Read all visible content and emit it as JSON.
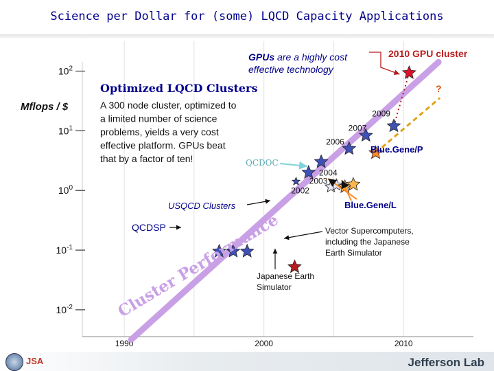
{
  "page": {
    "title": "Science per Dollar for (some) LQCD Capacity Applications",
    "footer_logo": "Jefferson Lab",
    "footer_left_logo": "JSA"
  },
  "chart_data": {
    "type": "scatter",
    "ylabel": "Mflops / $",
    "yscale": "log",
    "xlim": [
      1987,
      2015
    ],
    "ylim": [
      -2.45,
      2.5
    ],
    "x_ticks": [
      {
        "x": 1990,
        "label": "1990"
      },
      {
        "x": 2000,
        "label": "2000"
      },
      {
        "x": 2010,
        "label": "2010"
      }
    ],
    "y_ticks": [
      {
        "y": 2,
        "base": "10",
        "exp": "2"
      },
      {
        "y": 1,
        "base": "10",
        "exp": "1"
      },
      {
        "y": 0,
        "base": "10",
        "exp": "0"
      },
      {
        "y": -1,
        "base": "10",
        "exp": "-1"
      },
      {
        "y": -2,
        "base": "10",
        "exp": "-2"
      }
    ],
    "series": [
      {
        "name": "QCDSP",
        "marker": "star",
        "color": "#3f51b5",
        "x": [
          1996.8,
          1997.8,
          1998.8
        ],
        "y": [
          -1.02,
          -1.02,
          -1.02
        ]
      },
      {
        "name": "USQCD Clusters",
        "marker": "star",
        "color": "#3f51b5",
        "x": [
          2002.3,
          2003.2,
          2004.1,
          2006.1,
          2007.3,
          2009.3
        ],
        "y": [
          0.15,
          0.3,
          0.48,
          0.7,
          0.92,
          1.08
        ]
      },
      {
        "name": "QCDOC",
        "marker": "star",
        "color": "#e8eaf6",
        "x": [
          2004.8,
          2005.2
        ],
        "y": [
          0.06,
          0.09
        ]
      },
      {
        "name": "Blue.Gene/L",
        "marker": "star",
        "color": "#ffb74d",
        "x": [
          2005.8,
          2006.4
        ],
        "y": [
          0.06,
          0.1
        ]
      },
      {
        "name": "Blue.Gene/P",
        "marker": "star",
        "color": "#ff8c26",
        "x": [
          2008.0
        ],
        "y": [
          0.63
        ]
      },
      {
        "name": "Japanese Earth Simulator",
        "marker": "star",
        "color": "#b71c1c",
        "x": [
          2002.2
        ],
        "y": [
          -1.28
        ]
      },
      {
        "name": "2010 GPU cluster",
        "marker": "star",
        "color": "#e0102a",
        "x": [
          2010.4
        ],
        "y": [
          1.97
        ]
      }
    ],
    "trend": {
      "label": "Cluster Performance",
      "x": [
        1990.5,
        2012.5
      ],
      "y": [
        -2.5,
        2.15
      ]
    },
    "projection": {
      "x": [
        2008.0,
        2012.6
      ],
      "y": [
        0.63,
        1.55
      ]
    },
    "question_mark": "?",
    "point_labels": [
      {
        "text": "2002",
        "x": 2002.6,
        "y": -0.05
      },
      {
        "text": "2003",
        "x": 2003.9,
        "y": 0.11
      },
      {
        "text": "2004",
        "x": 2004.6,
        "y": 0.25
      },
      {
        "text": "2006",
        "x": 2005.1,
        "y": 0.77
      },
      {
        "text": "2007",
        "x": 2006.7,
        "y": 1.0
      },
      {
        "text": "2009",
        "x": 2008.4,
        "y": 1.24
      }
    ],
    "annotations": {
      "gpu_headline_em": "GPUs",
      "gpu_headline_rest": " are a highly cost",
      "gpu_headline_2": "effective technology",
      "gpu_cluster_label": "2010 GPU cluster",
      "optimized_title": "Optimized LQCD Clusters",
      "optimized_body": [
        "A 300 node cluster, optimized to",
        "a limited number of science",
        "problems, yields a very cost",
        "effective platform. GPUs beat",
        "that by a factor of ten!"
      ],
      "qcdoc": "QCDOC",
      "bluegene_p": "Blue.Gene/P",
      "bluegene_l": "Blue.Gene/L",
      "usqcd_clusters": "USQCD Clusters",
      "qcdsp": "QCDSP",
      "vector_sc": [
        "Vector Supercomputers,",
        "including the Japanese",
        "Earth Simulator"
      ],
      "earth_sim": [
        "Japanese Earth",
        "Simulator"
      ],
      "cluster_perf": "Cluster Performance"
    }
  }
}
